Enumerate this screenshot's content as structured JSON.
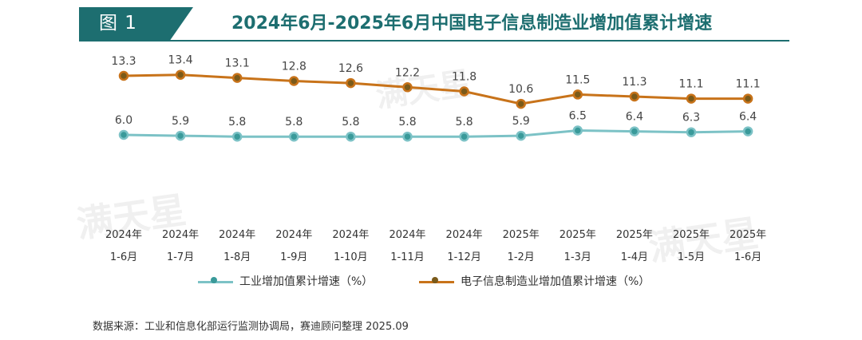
{
  "figure_label": "图 1",
  "chart_data": {
    "type": "line",
    "title": "2024年6月-2025年6月中国电子信息制造业增加值累计增速",
    "x_line1": [
      "2024年",
      "2024年",
      "2024年",
      "2024年",
      "2024年",
      "2024年",
      "2024年",
      "2025年",
      "2025年",
      "2025年",
      "2025年",
      "2025年"
    ],
    "x_line2": [
      "1-6月",
      "1-7月",
      "1-8月",
      "1-9月",
      "1-10月",
      "1-11月",
      "1-12月",
      "1-2月",
      "1-3月",
      "1-4月",
      "1-5月",
      "1-6月"
    ],
    "series": [
      {
        "name": "电子信息制造业增加值累计增速（%）",
        "color": "#c8731a",
        "values": [
          13.3,
          13.4,
          13.1,
          12.8,
          12.6,
          12.2,
          11.8,
          10.6,
          11.5,
          11.3,
          11.1,
          11.1
        ],
        "labels": [
          "13.3",
          "13.4",
          "13.1",
          "12.8",
          "12.6",
          "12.2",
          "11.8",
          "10.6",
          "11.5",
          "11.3",
          "11.1",
          "11.1"
        ]
      },
      {
        "name": "工业增加值累计增速（%）",
        "color": "#7cc2c6",
        "values": [
          6.0,
          5.9,
          5.8,
          5.8,
          5.8,
          5.8,
          5.8,
          5.9,
          6.5,
          6.4,
          6.3,
          6.4
        ],
        "labels": [
          "6.0",
          "5.9",
          "5.8",
          "5.8",
          "5.8",
          "5.8",
          "5.8",
          "5.9",
          "6.5",
          "6.4",
          "6.3",
          "6.4"
        ]
      }
    ],
    "legend_position": "bottom",
    "grid": false
  },
  "legend": {
    "industry_label": "工业增加值累计增速（%）",
    "electronics_label": "电子信息制造业增加值累计增速（%）"
  },
  "source": "数据来源：工业和信息化部运行监测协调局，赛迪顾问整理 2025.09",
  "watermark_text": "满天星"
}
